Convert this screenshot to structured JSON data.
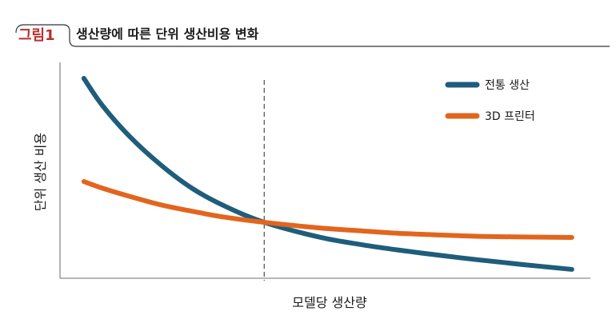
{
  "figure_label": "그림1",
  "colors": {
    "figure_label": "#bb2d2d",
    "axis": "#8c8c8c",
    "reference_line": "#3a3a3a"
  },
  "chart_data": {
    "type": "line",
    "title": "생산량에 따른 단위 생산비용 변화",
    "xlabel": "모델당 생산량",
    "ylabel": "단위 생산 비용",
    "xlim": [
      0,
      100
    ],
    "ylim": [
      0,
      100
    ],
    "grid": false,
    "legend_position": "top-right",
    "x": [
      4.5,
      8,
      13,
      19,
      25,
      31,
      38.5,
      49,
      57,
      64,
      72,
      79,
      87,
      96.5
    ],
    "series": [
      {
        "name": "전통 생산",
        "color": "#1e5d7b",
        "values": [
          92.6,
          80,
          66,
          52.5,
          41.5,
          33.5,
          25.9,
          19,
          15.5,
          13,
          10.5,
          8.5,
          6.4,
          4.1
        ]
      },
      {
        "name": "3D 프린터",
        "color": "#e2651e",
        "values": [
          44.8,
          41.7,
          38,
          34,
          31,
          28.3,
          25.9,
          23.3,
          21.9,
          20.8,
          20,
          19.4,
          19.1,
          18.9
        ]
      }
    ],
    "vertical_reference": {
      "x": 38.5,
      "style": "dashed"
    }
  }
}
